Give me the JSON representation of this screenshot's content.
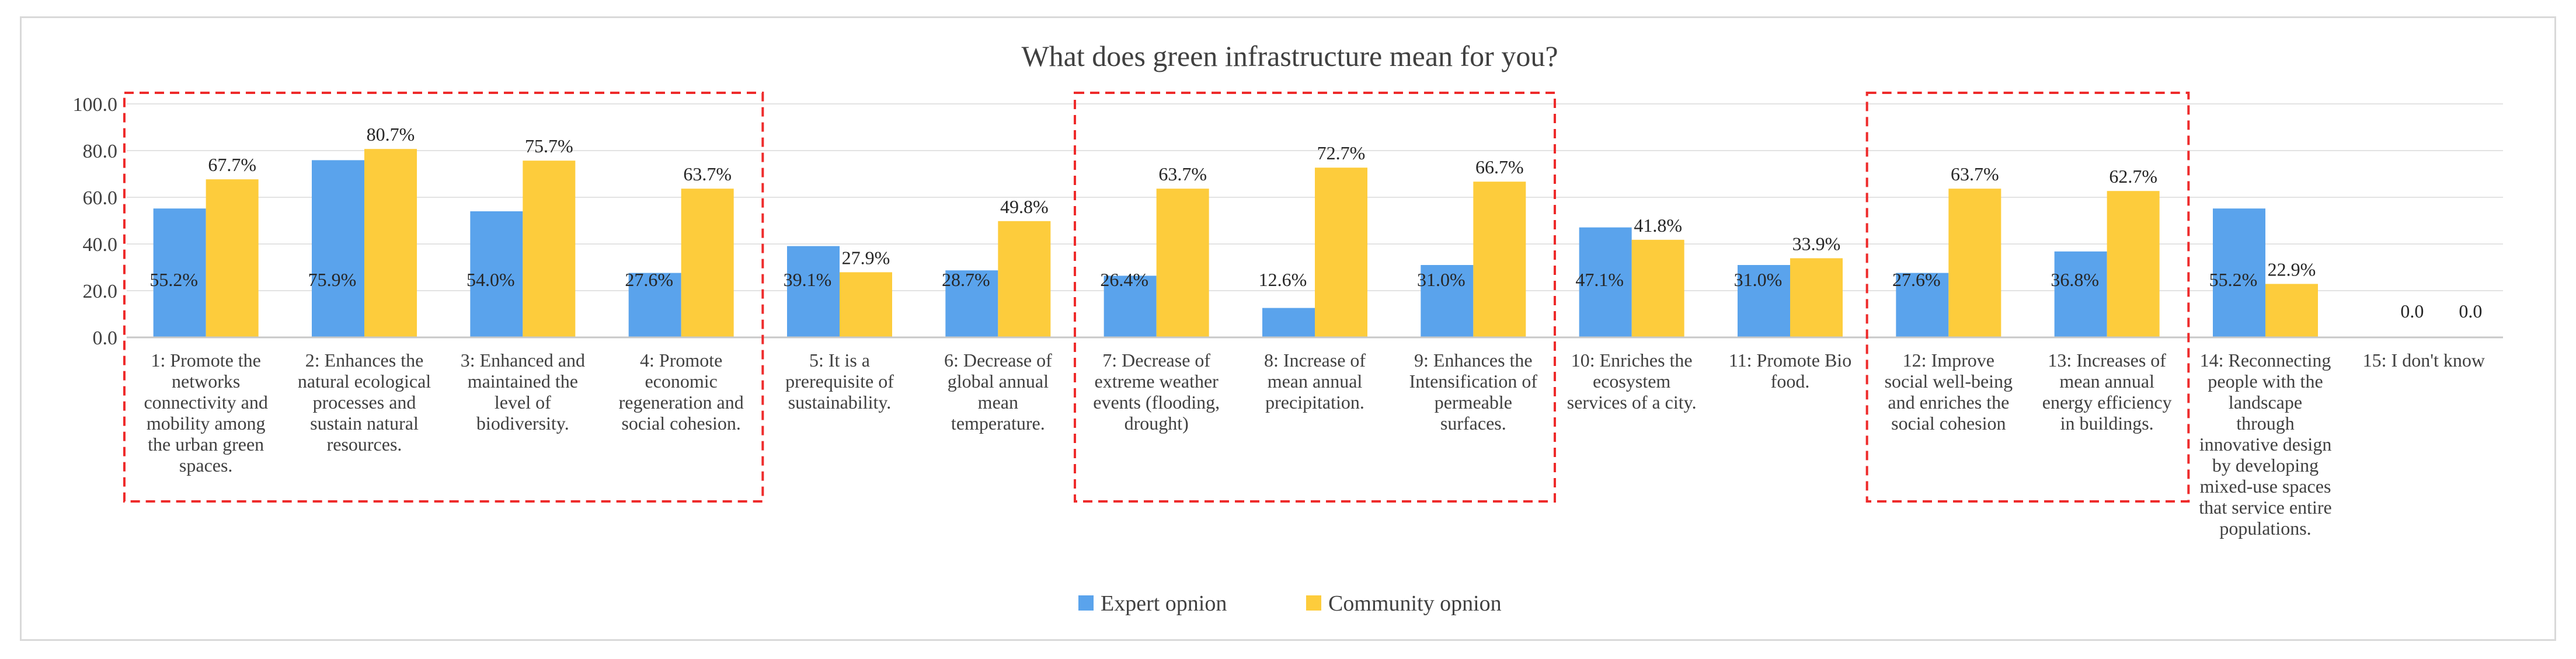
{
  "chart_data": {
    "type": "bar",
    "title": "What does green infrastructure mean for you?",
    "xlabel": "",
    "ylabel": "",
    "ylim": [
      0,
      100
    ],
    "yticks": [
      0,
      20,
      40,
      60,
      80,
      100
    ],
    "ytick_labels": [
      "0.0",
      "20.0",
      "40.0",
      "60.0",
      "80.0",
      "100.0"
    ],
    "grid": true,
    "legend_position": "bottom-center",
    "categories": [
      "1: Promote the networks connectivity and mobility among the urban green spaces.",
      "2: Enhances the natural ecological processes and sustain natural resources.",
      "3: Enhanced and maintained the level of biodiversity.",
      "4: Promote economic regeneration and social cohesion.",
      "5: It is a prerequisite of sustainability.",
      "6: Decrease of global annual mean temperature.",
      "7: Decrease of extreme weather events (flooding, drought)",
      "8: Increase of mean annual precipitation.",
      "9: Enhances the Intensification of permeable surfaces.",
      "10: Enriches the ecosystem services of a city.",
      "11: Promote Bio food.",
      "12: Improve social well-being and enriches the social cohesion",
      "13: Increases of mean annual energy efficiency in buildings.",
      "14: Reconnecting people with the landscape through innovative design by developing mixed-use spaces that service entire populations.",
      "15: I don't know"
    ],
    "category_lines": [
      [
        "1: Promote the",
        "networks",
        "connectivity and",
        "mobility among",
        "the urban green",
        "spaces."
      ],
      [
        "2: Enhances the",
        "natural ecological",
        "processes and",
        "sustain natural",
        "resources."
      ],
      [
        "3: Enhanced and",
        "maintained the",
        "level of",
        "biodiversity."
      ],
      [
        "4: Promote",
        "economic",
        "regeneration and",
        "social cohesion."
      ],
      [
        "5: It is a",
        "prerequisite of",
        "sustainability."
      ],
      [
        "6: Decrease of",
        "global annual",
        "mean",
        "temperature."
      ],
      [
        "7: Decrease of",
        "extreme weather",
        "events (flooding,",
        "drought)"
      ],
      [
        "8: Increase of",
        "mean annual",
        "precipitation."
      ],
      [
        "9: Enhances the",
        "Intensification of",
        "permeable",
        "surfaces."
      ],
      [
        "10: Enriches the",
        "ecosystem",
        "services of a city."
      ],
      [
        "11: Promote Bio",
        "food."
      ],
      [
        "12: Improve",
        "social well-being",
        "and enriches the",
        "social cohesion"
      ],
      [
        "13: Increases of",
        "mean annual",
        "energy efficiency",
        "in buildings."
      ],
      [
        "14: Reconnecting",
        "people with the",
        "landscape",
        "through",
        "innovative design",
        "by developing",
        "mixed-use spaces",
        "that service entire",
        "populations."
      ],
      [
        "15: I don't know"
      ]
    ],
    "series": [
      {
        "name": "Expert opnion",
        "color": "#5aa3ec",
        "values": [
          55.2,
          75.9,
          54.0,
          27.6,
          39.1,
          28.7,
          26.4,
          12.6,
          31.0,
          47.1,
          31.0,
          27.6,
          36.8,
          55.2,
          0.0
        ],
        "labels": [
          "55.2%",
          "75.9%",
          "54.0%",
          "27.6%",
          "39.1%",
          "28.7%",
          "26.4%",
          "12.6%",
          "31.0%",
          "47.1%",
          "31.0%",
          "27.6%",
          "36.8%",
          "55.2%",
          "0.0"
        ]
      },
      {
        "name": "Community opnion",
        "color": "#fdcc3c",
        "values": [
          67.7,
          80.7,
          75.7,
          63.7,
          27.9,
          49.8,
          63.7,
          72.7,
          66.7,
          41.8,
          33.9,
          63.7,
          62.7,
          22.9,
          0.0
        ],
        "labels": [
          "67.7%",
          "80.7%",
          "75.7%",
          "63.7%",
          "27.9%",
          "49.8%",
          "63.7%",
          "72.7%",
          "66.7%",
          "41.8%",
          "33.9%",
          "63.7%",
          "62.7%",
          "22.9%",
          "0.0"
        ]
      }
    ],
    "highlight_groups": [
      {
        "from": 0,
        "to": 3,
        "style": "dashed",
        "color": "#ee2b2b"
      },
      {
        "from": 6,
        "to": 8,
        "style": "dashed",
        "color": "#ee2b2b"
      },
      {
        "from": 11,
        "to": 12,
        "style": "dashed",
        "color": "#ee2b2b"
      }
    ]
  }
}
